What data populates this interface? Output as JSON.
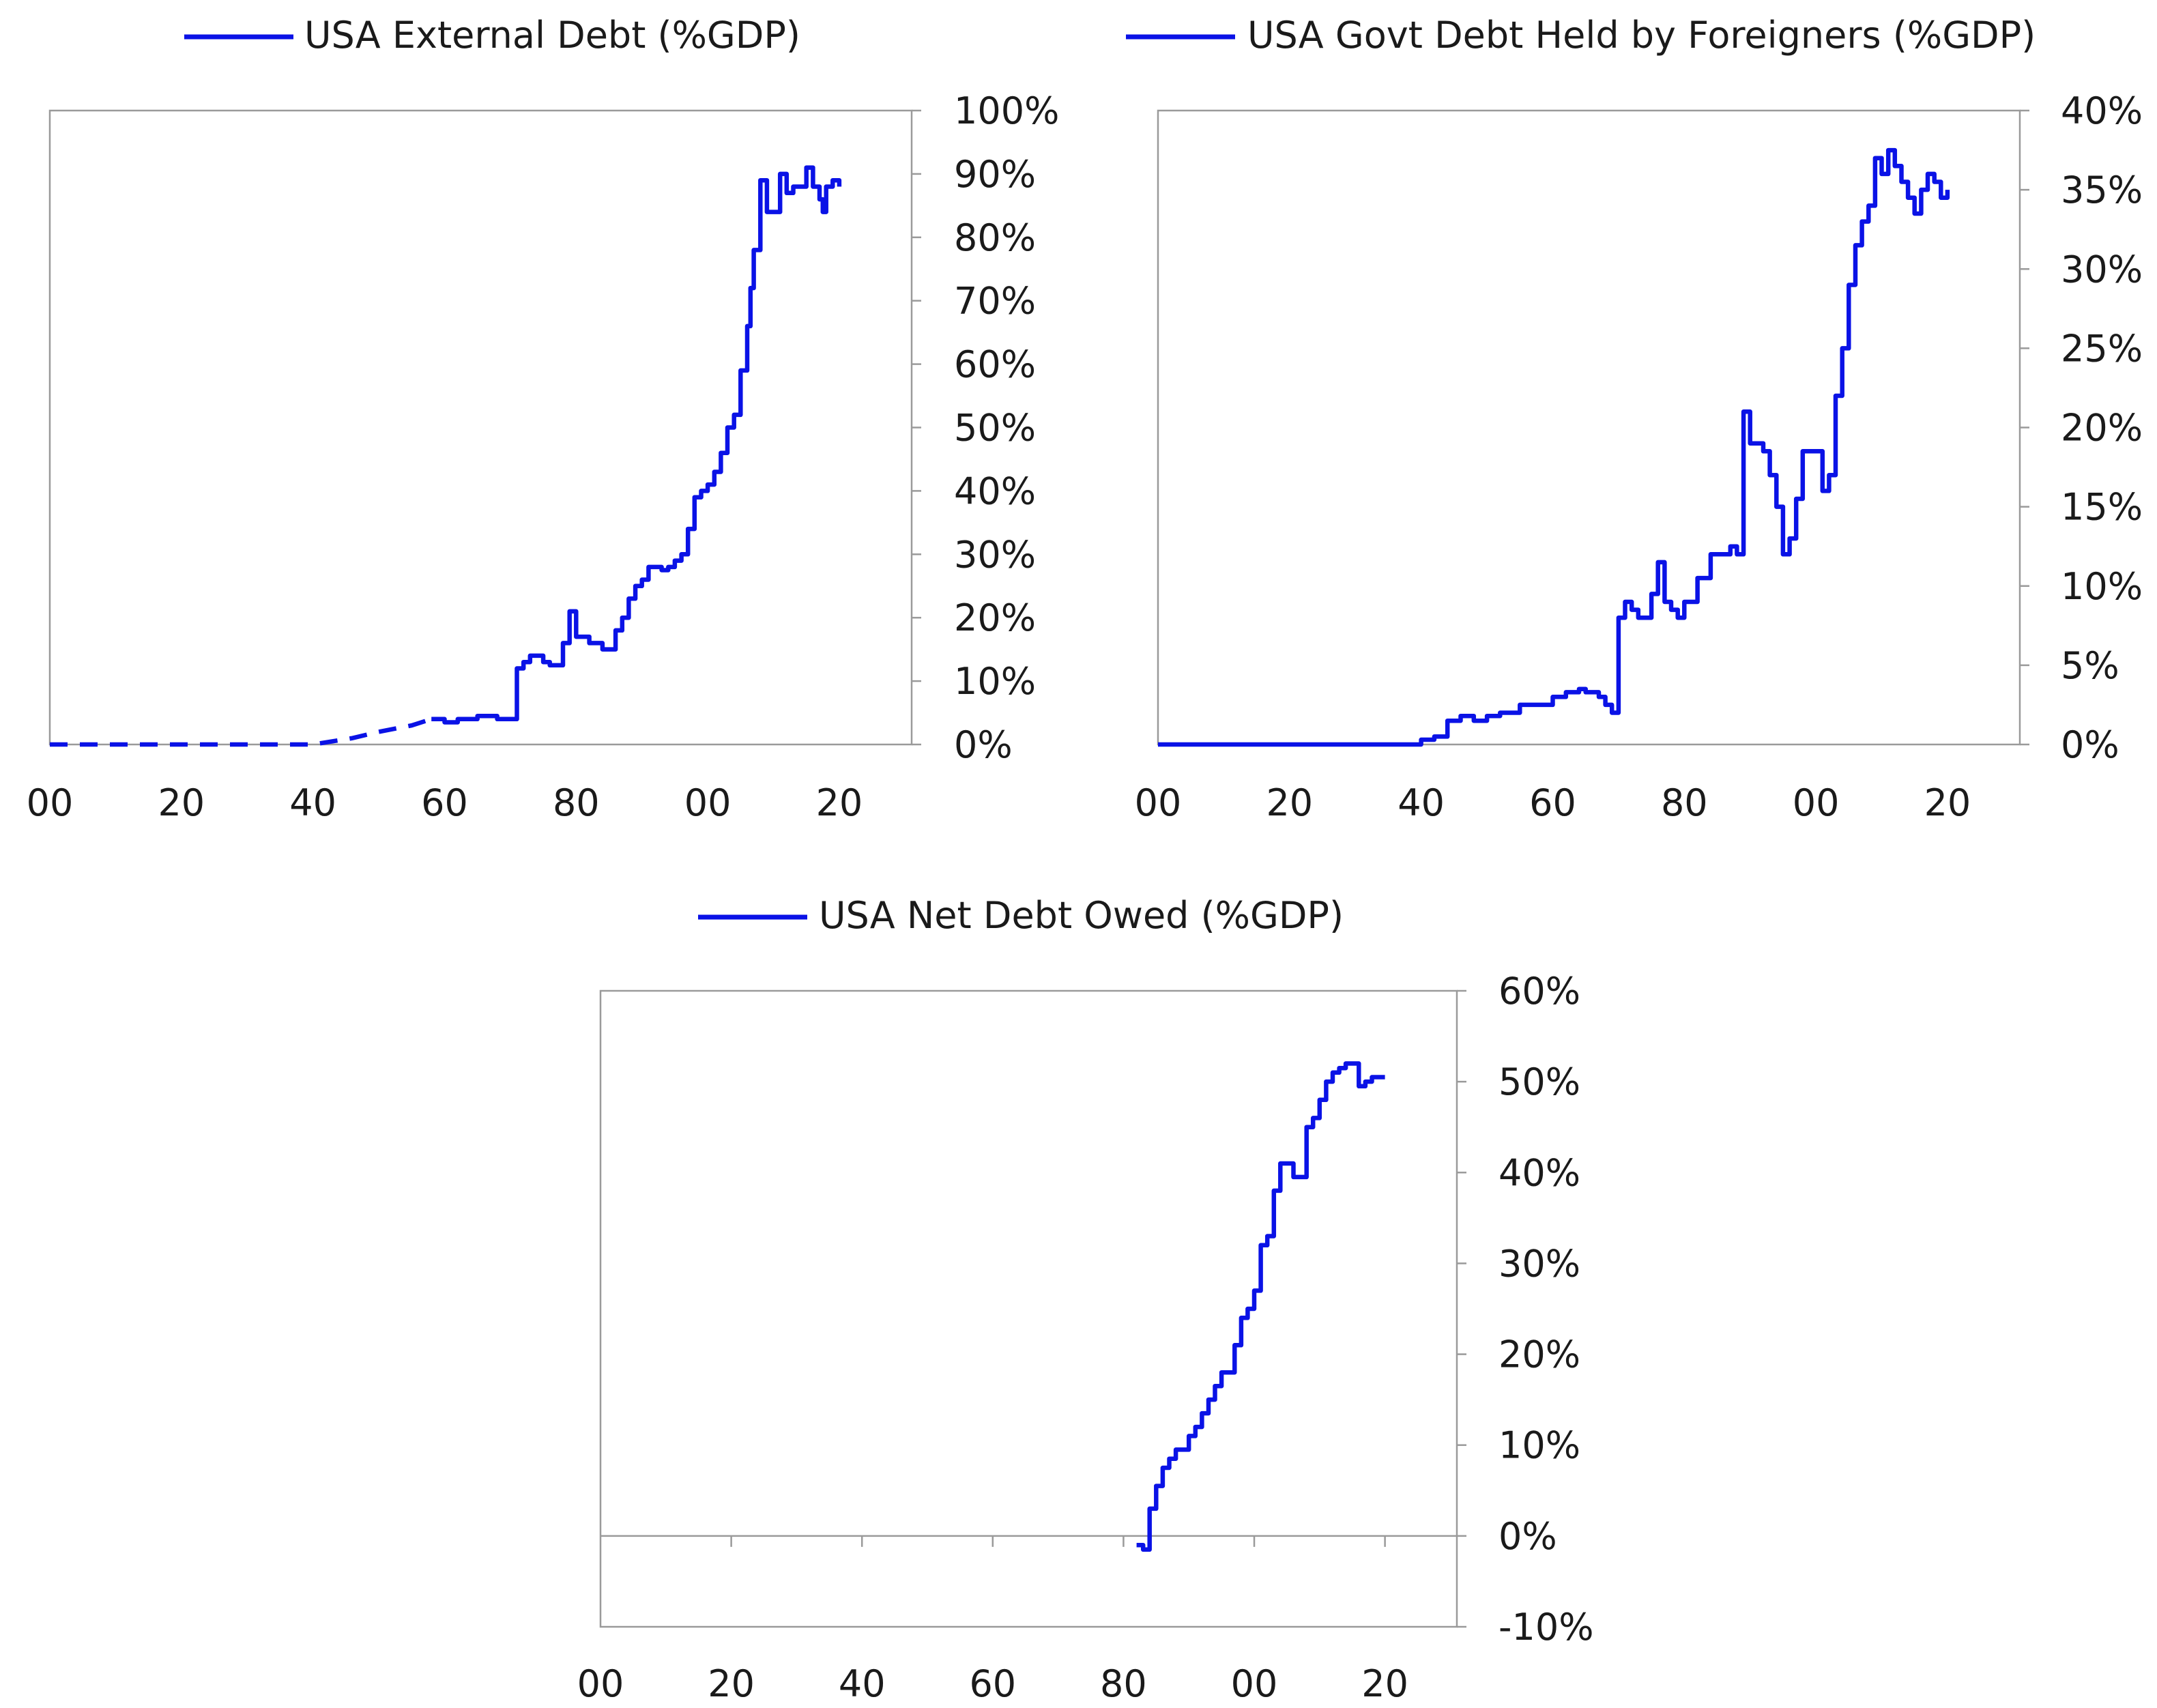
{
  "series_color": "#0a12e6",
  "chart_data": [
    {
      "type": "line",
      "title": "",
      "legend": "top-center",
      "series": [
        {
          "name": "USA External Debt (%GDP)",
          "style": "dashed until 1958, solid after",
          "x": [
            1900,
            1940,
            1946,
            1950,
            1955,
            1958,
            1960,
            1962,
            1965,
            1967,
            1968,
            1970,
            1971,
            1972,
            1973,
            1975,
            1976,
            1978,
            1979,
            1980,
            1982,
            1984,
            1986,
            1987,
            1988,
            1989,
            1990,
            1991,
            1993,
            1994,
            1995,
            1996,
            1997,
            1998,
            1999,
            2000,
            2001,
            2002,
            2003,
            2004,
            2005,
            2006,
            2006.5,
            2007,
            2008,
            2009,
            2010,
            2011,
            2012,
            2013,
            2014,
            2015,
            2016,
            2017,
            2017.5,
            2018,
            2019,
            2020
          ],
          "values": [
            0,
            0,
            1,
            2,
            3,
            4,
            3.5,
            4,
            4.5,
            4.5,
            4,
            4,
            12,
            13,
            14,
            13,
            12.5,
            16,
            21,
            17,
            16,
            15,
            18,
            20,
            23,
            25,
            26,
            28,
            27.5,
            28,
            29,
            30,
            34,
            39,
            40,
            41,
            43,
            46,
            50,
            52,
            59,
            66,
            72,
            78,
            89,
            84,
            84,
            90,
            87,
            88,
            88,
            91,
            88,
            86,
            84,
            88,
            89,
            88
          ]
        }
      ],
      "xlabel": "",
      "ylabel": "",
      "x_tick_labels": [
        "00",
        "20",
        "40",
        "60",
        "80",
        "00",
        "20"
      ],
      "y_tick_labels": [
        "0%",
        "10%",
        "20%",
        "30%",
        "40%",
        "50%",
        "60%",
        "70%",
        "80%",
        "90%",
        "100%"
      ],
      "xlim": [
        1900,
        2031
      ],
      "ylim": [
        0,
        100
      ],
      "y_axis_side": "right",
      "grid": false
    },
    {
      "type": "line",
      "title": "",
      "legend": "top-center",
      "series": [
        {
          "name": "USA Govt Debt Held by Foreigners (%GDP)",
          "style": "solid",
          "x": [
            1900,
            1938,
            1940,
            1942,
            1944,
            1946,
            1948,
            1950,
            1952,
            1955,
            1958,
            1960,
            1962,
            1964,
            1965,
            1967,
            1968,
            1969,
            1970,
            1971,
            1972,
            1973,
            1975,
            1976,
            1977,
            1978,
            1979,
            1980,
            1982,
            1984,
            1985,
            1987,
            1988,
            1989,
            1990,
            1992,
            1993,
            1994,
            1995,
            1996,
            1997,
            1998,
            2000,
            2001,
            2002,
            2003,
            2004,
            2005,
            2006,
            2007,
            2008,
            2009,
            2010,
            2011,
            2012,
            2013,
            2014,
            2015,
            2016,
            2017,
            2018,
            2019,
            2020
          ],
          "values": [
            0,
            0,
            0.3,
            0.5,
            1.5,
            1.8,
            1.5,
            1.8,
            2,
            2.5,
            2.5,
            3,
            3.3,
            3.5,
            3.3,
            3,
            2.5,
            2,
            8,
            9,
            8.5,
            8,
            9.5,
            11.5,
            9,
            8.5,
            8,
            9,
            10.5,
            12,
            12,
            12.5,
            12,
            21,
            19,
            18.5,
            17,
            15,
            12,
            13,
            15.5,
            18.5,
            18.5,
            16,
            17,
            22,
            25,
            29,
            31.5,
            33,
            34,
            37,
            36,
            37.5,
            36.5,
            35.5,
            34.5,
            33.5,
            35,
            36,
            35.5,
            34.5,
            35
          ]
        }
      ],
      "xlabel": "",
      "ylabel": "",
      "x_tick_labels": [
        "00",
        "20",
        "40",
        "60",
        "80",
        "00",
        "20"
      ],
      "y_tick_labels": [
        "0%",
        "5%",
        "10%",
        "15%",
        "20%",
        "25%",
        "30%",
        "35%",
        "40%"
      ],
      "xlim": [
        1900,
        2031
      ],
      "ylim": [
        0,
        40
      ],
      "y_axis_side": "right",
      "grid": false
    },
    {
      "type": "line",
      "title": "",
      "legend": "top-center",
      "series": [
        {
          "name": "USA Net Debt Owed (%GDP)",
          "style": "solid",
          "x": [
            1982,
            1983,
            1984,
            1985,
            1986,
            1987,
            1988,
            1990,
            1991,
            1992,
            1993,
            1994,
            1995,
            1996,
            1997,
            1998,
            1999,
            2000,
            2001,
            2002,
            2003,
            2004,
            2005,
            2006,
            2007,
            2008,
            2009,
            2010,
            2011,
            2012,
            2013,
            2014,
            2015,
            2016,
            2017,
            2018,
            2019,
            2020
          ],
          "values": [
            -1,
            -1.5,
            3,
            5.5,
            7.5,
            8.5,
            9.5,
            11,
            12,
            13.5,
            15,
            16.5,
            18,
            18,
            21,
            24,
            25,
            27,
            32,
            33,
            38,
            41,
            41,
            39.5,
            39.5,
            45,
            46,
            48,
            50,
            51,
            51.5,
            52,
            52,
            49.5,
            50,
            50.5,
            50.5,
            50.5
          ]
        }
      ],
      "xlabel": "",
      "ylabel": "",
      "x_tick_labels": [
        "00",
        "20",
        "40",
        "60",
        "80",
        "00",
        "20"
      ],
      "y_tick_labels": [
        "-10%",
        "0%",
        "10%",
        "20%",
        "30%",
        "40%",
        "50%",
        "60%"
      ],
      "xlim": [
        1900,
        2031
      ],
      "ylim": [
        -10,
        60
      ],
      "y_axis_side": "right",
      "grid": false
    }
  ]
}
